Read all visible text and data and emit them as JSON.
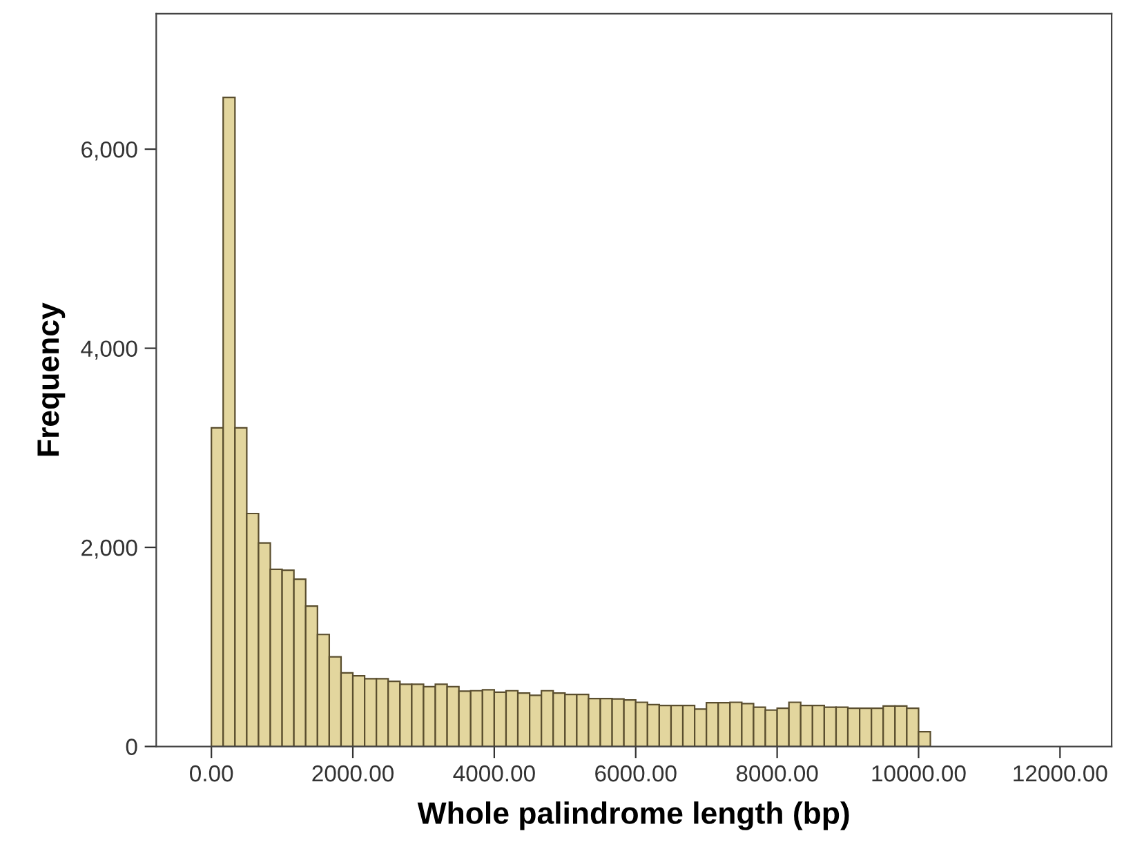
{
  "chart_data": {
    "type": "histogram",
    "xlabel": "Whole palindrome length (bp)",
    "ylabel": "Frequency",
    "bins": [
      0,
      166.67,
      333.33,
      500,
      666.67,
      833.33,
      1000,
      1166.67,
      1333.33,
      1500,
      1666.67,
      1833.33,
      2000,
      2166.67,
      2333.33,
      2500,
      2666.67,
      2833.33,
      3000,
      3166.67,
      3333.33,
      3500,
      3666.67,
      3833.33,
      4000,
      4166.67,
      4333.33,
      4500,
      4666.67,
      4833.33,
      5000,
      5166.67,
      5333.33,
      5500,
      5666.67,
      5833.33,
      6000,
      6166.67,
      6333.33,
      6500,
      6666.67,
      6833.33,
      7000,
      7166.67,
      7333.33,
      7500,
      7666.67,
      7833.33,
      8000,
      8166.67,
      8333.33,
      8500,
      8666.67,
      8833.33,
      9000,
      9166.67,
      9333.33,
      9500,
      9666.67,
      9833.33,
      10000,
      10166.67
    ],
    "values": [
      3200,
      6520,
      3200,
      2340,
      2045,
      1780,
      1770,
      1680,
      1410,
      1125,
      900,
      740,
      710,
      680,
      680,
      655,
      625,
      625,
      600,
      625,
      600,
      555,
      560,
      570,
      546,
      560,
      537,
      514,
      560,
      537,
      523,
      523,
      481,
      481,
      477,
      468,
      444,
      421,
      412,
      412,
      412,
      375,
      440,
      440,
      444,
      431,
      394,
      366,
      384,
      444,
      412,
      412,
      394,
      394,
      384,
      384,
      384,
      407,
      407,
      384,
      148
    ],
    "color": "#e3d69e",
    "xlim": [
      -780,
      12730
    ],
    "xticks": [
      {
        "value": 0,
        "label": "0.00"
      },
      {
        "value": 2000,
        "label": "2000.00"
      },
      {
        "value": 4000,
        "label": "4000.00"
      },
      {
        "value": 6000,
        "label": "6000.00"
      },
      {
        "value": 8000,
        "label": "8000.00"
      },
      {
        "value": 10000,
        "label": "10000.00"
      },
      {
        "value": 12000,
        "label": "12000.00"
      }
    ],
    "ylim": [
      0,
      7360
    ],
    "yticks": [
      0,
      {
        "value": 2000,
        "label": "2,000"
      },
      {
        "value": 4000,
        "label": "4,000"
      },
      {
        "value": 6000,
        "label": "6,000"
      }
    ],
    "grid": false
  }
}
